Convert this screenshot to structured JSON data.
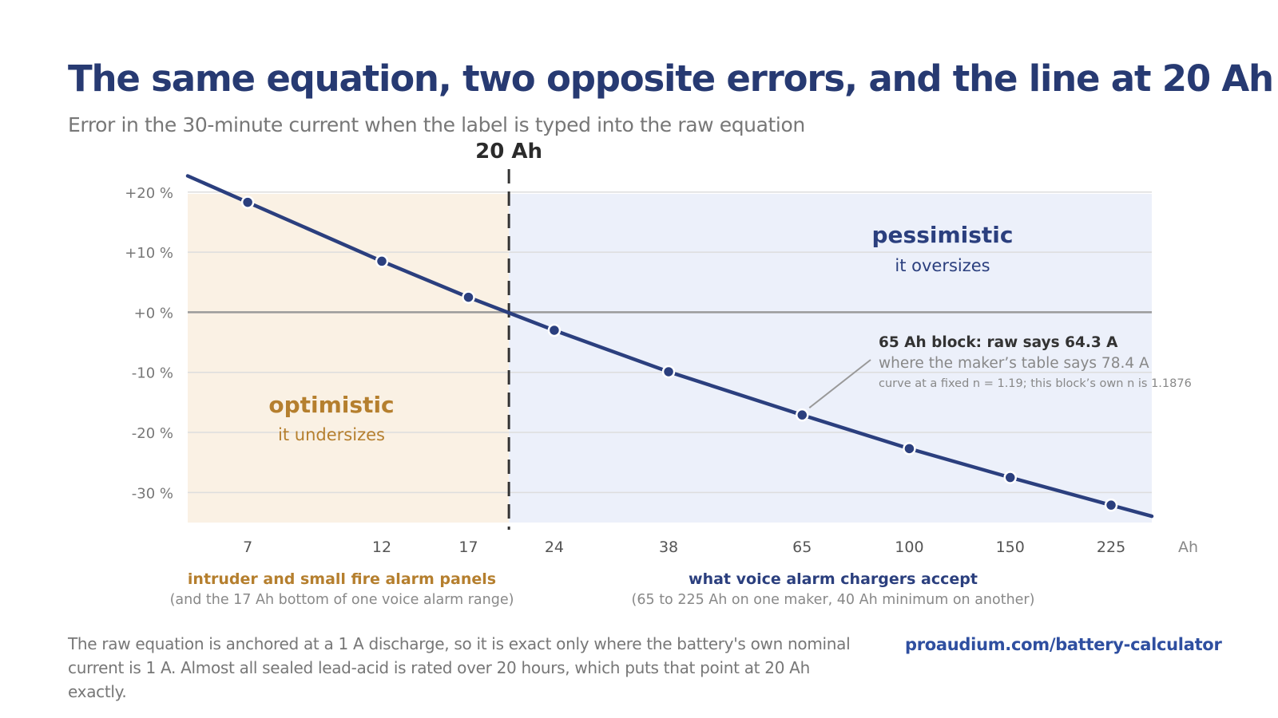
{
  "title": "The same equation, two opposite errors, and the line at 20 Ah",
  "subtitle": "Error in the 30-minute current when the label is typed into the raw equation",
  "footnote": "The raw equation is anchored at a 1 A discharge, so it is exact only where the battery's own nominal current is 1 A. Almost all sealed lead-acid is rated over 20 hours, which puts that point at 20 Ah exactly.",
  "link": "proaudium.com/battery-calculator",
  "colors": {
    "line": "#2b3f7e",
    "optimistic_band": "#faf1e4",
    "pessimistic_band": "#ecf0fa",
    "optimistic_text": "#b57f2e",
    "pessimistic_text": "#2b3f7e"
  },
  "regions": {
    "optimistic": {
      "title": "optimistic",
      "subtitle": "it undersizes"
    },
    "pessimistic": {
      "title": "pessimistic",
      "subtitle": "it oversizes"
    }
  },
  "annotation": {
    "line1": "65 Ah block:  raw says 64.3 A",
    "line2": "where the maker’s table says 78.4 A",
    "line3": "curve at a fixed n = 1.19; this block’s own n is 1.1876",
    "x": 65
  },
  "groups": {
    "left": {
      "title": "intruder and small fire alarm panels",
      "subtitle": "(and the 17 Ah bottom of one voice alarm range)"
    },
    "right": {
      "title": "what voice alarm chargers accept",
      "subtitle": "(65 to 225 Ah on one maker, 40 Ah minimum on another)"
    }
  },
  "chart_data": {
    "type": "line",
    "x_scale": "log",
    "x_unit_label": "Ah",
    "threshold": {
      "x": 20,
      "label": "20 Ah"
    },
    "x_ticks": [
      7,
      12,
      17,
      24,
      38,
      65,
      100,
      150,
      225
    ],
    "y_ticks": [
      {
        "value": 20,
        "label": "+20 %"
      },
      {
        "value": 10,
        "label": "+10 %"
      },
      {
        "value": 0,
        "label": "+0 %"
      },
      {
        "value": -10,
        "label": "-10 %"
      },
      {
        "value": -20,
        "label": "-20 %"
      },
      {
        "value": -30,
        "label": "-30 %"
      }
    ],
    "xlim": [
      5.5,
      265
    ],
    "ylim": [
      -35,
      20.5
    ],
    "grid": true,
    "series": [
      {
        "points": [
          {
            "x": 7,
            "y": 18.3
          },
          {
            "x": 12,
            "y": 8.5
          },
          {
            "x": 17,
            "y": 2.5
          },
          {
            "x": 24,
            "y": -3
          },
          {
            "x": 38,
            "y": -9.9
          },
          {
            "x": 65,
            "y": -17.1
          },
          {
            "x": 100,
            "y": -22.7
          },
          {
            "x": 150,
            "y": -27.5
          },
          {
            "x": 225,
            "y": -32.1
          }
        ]
      }
    ]
  }
}
